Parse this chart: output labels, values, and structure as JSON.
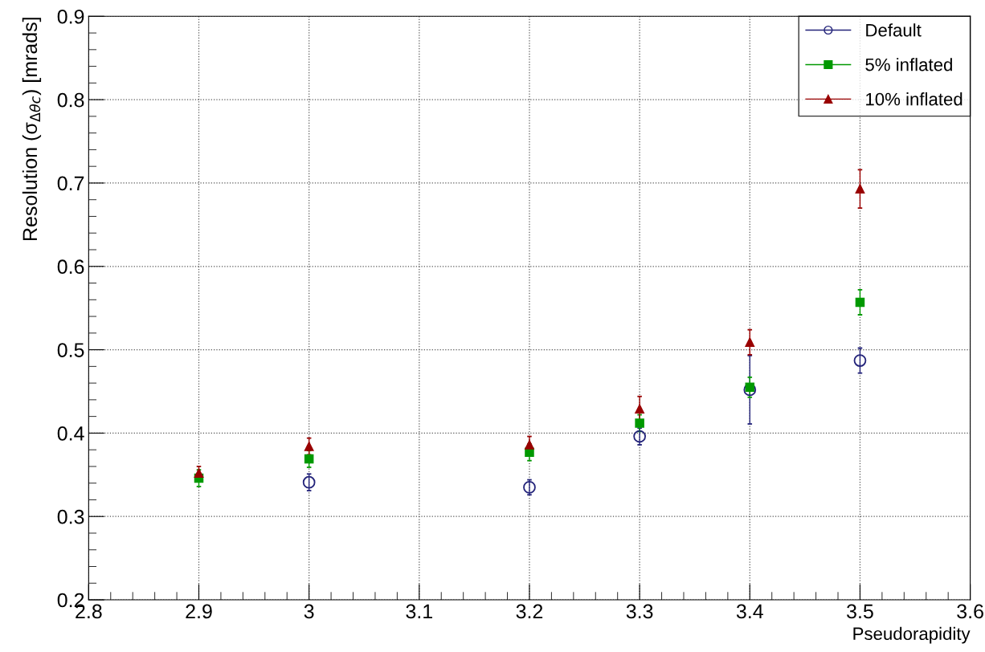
{
  "chart_data": {
    "type": "scatter",
    "xlabel": "Pseudorapidity",
    "ylabel": "Resolution (σ$_{Δθc}$) [mrads]",
    "x": [
      2.9,
      3.0,
      3.2,
      3.3,
      3.4,
      3.5
    ],
    "series": [
      {
        "name": "Default",
        "color": "#23237a",
        "marker": "circle",
        "values": [
          null,
          0.341,
          0.335,
          0.396,
          0.452,
          0.487
        ],
        "errors": [
          null,
          0.01,
          0.009,
          0.01,
          0.041,
          0.015
        ]
      },
      {
        "name": "5% inflated",
        "color": "#009900",
        "marker": "square",
        "values": [
          0.346,
          0.369,
          0.377,
          0.412,
          0.455,
          0.557
        ],
        "errors": [
          0.01,
          0.01,
          0.01,
          0.01,
          0.012,
          0.015
        ]
      },
      {
        "name": "10% inflated",
        "color": "#990000",
        "marker": "triangle",
        "values": [
          0.352,
          0.384,
          0.386,
          0.429,
          0.509,
          0.693
        ],
        "errors": [
          0.008,
          0.01,
          0.01,
          0.015,
          0.015,
          0.023
        ]
      }
    ],
    "xlim": [
      2.8,
      3.6
    ],
    "xticks": [
      2.8,
      2.9,
      3,
      3.1,
      3.2,
      3.3,
      3.4,
      3.5,
      3.6
    ],
    "ylim": [
      0.2,
      0.9
    ],
    "yticks": [
      0.2,
      0.3,
      0.4,
      0.5,
      0.6,
      0.7,
      0.8,
      0.9
    ],
    "grid": true,
    "legend": "top right"
  }
}
